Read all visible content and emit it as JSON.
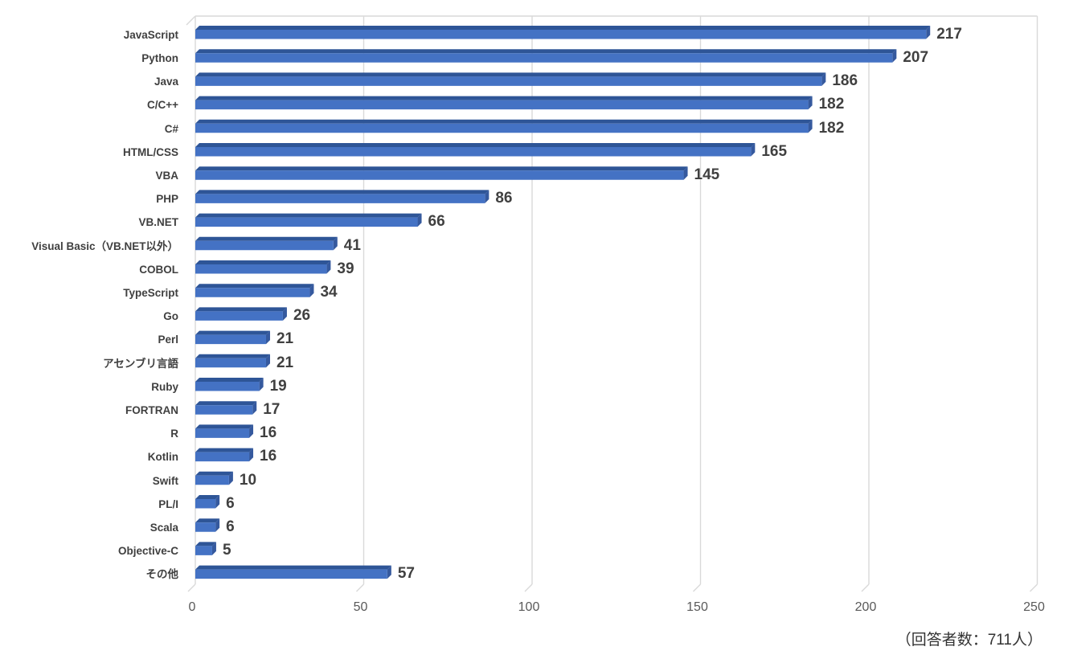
{
  "chart_data": {
    "type": "bar",
    "orientation": "horizontal",
    "style": "3d",
    "title": "",
    "xlabel": "",
    "ylabel": "",
    "categories": [
      "JavaScript",
      "Python",
      "Java",
      "C/C++",
      "C#",
      "HTML/CSS",
      "VBA",
      "PHP",
      "VB.NET",
      "Visual Basic（VB.NET以外）",
      "COBOL",
      "TypeScript",
      "Go",
      "Perl",
      "アセンブリ言語",
      "Ruby",
      "FORTRAN",
      "R",
      "Kotlin",
      "Swift",
      "PL/I",
      "Scala",
      "Objective-C",
      "その他"
    ],
    "values": [
      217,
      207,
      186,
      182,
      182,
      165,
      145,
      86,
      66,
      41,
      39,
      34,
      26,
      21,
      21,
      19,
      17,
      16,
      16,
      10,
      6,
      6,
      5,
      57
    ],
    "xlim": [
      0,
      250
    ],
    "xticks": [
      0,
      50,
      100,
      150,
      200,
      250
    ],
    "xtick_labels": [
      "0",
      "50",
      "100",
      "150",
      "200",
      "250"
    ],
    "grid": true,
    "legend": false,
    "note": "（回答者数：711人）",
    "colors": {
      "bar_front": "#4472C4",
      "bar_top": "#2E5597",
      "bar_side": "#35599E",
      "gridline": "#D9D9D9",
      "data_label": "#404040",
      "category_label": "#404040",
      "tick_label": "#595959",
      "note_text": "#333333",
      "background": "#FFFFFF"
    }
  }
}
